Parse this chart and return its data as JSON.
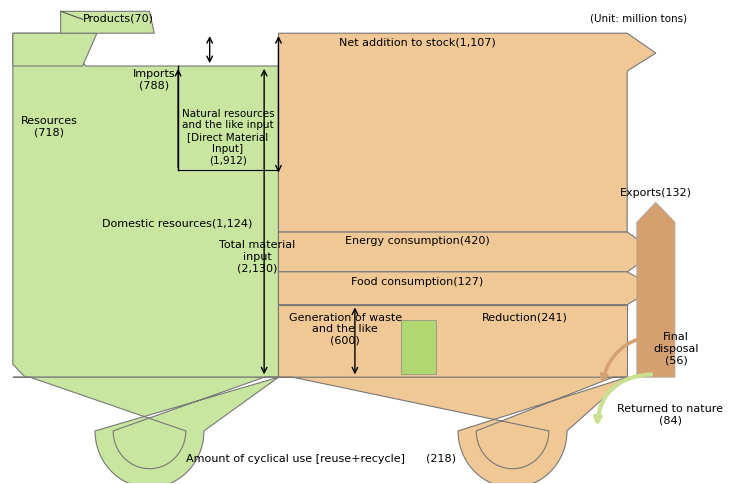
{
  "unit_label": "(Unit: million tons)",
  "green_light": "#c8e6a0",
  "green_medium": "#b0d870",
  "orange_light": "#f0c896",
  "tan_arrow": "#d4a070",
  "green_arrow": "#c8e090",
  "label_products": "Products(70)",
  "label_imports": "Imports\n(788)",
  "label_natural": "Natural resources\nand the like input\n[Direct Material\nInput]\n(1,912)",
  "label_resources": "Resources\n(718)",
  "label_domestic": "Domestic resources(1,124)",
  "label_total": "Total material\ninput\n(2,130)",
  "label_net": "Net addition to stock(1,107)",
  "label_energy": "Energy consumption(420)",
  "label_food": "Food consumption(127)",
  "label_generation": "Generation of waste\nand the like\n(600)",
  "label_reduction": "Reduction(241)",
  "label_exports": "Exports(132)",
  "label_final": "Final\ndisposal\n(56)",
  "label_returned": "Returned to nature\n(84)",
  "label_cyclical": "Amount of cyclical use [reuse+recycle]      (218)"
}
